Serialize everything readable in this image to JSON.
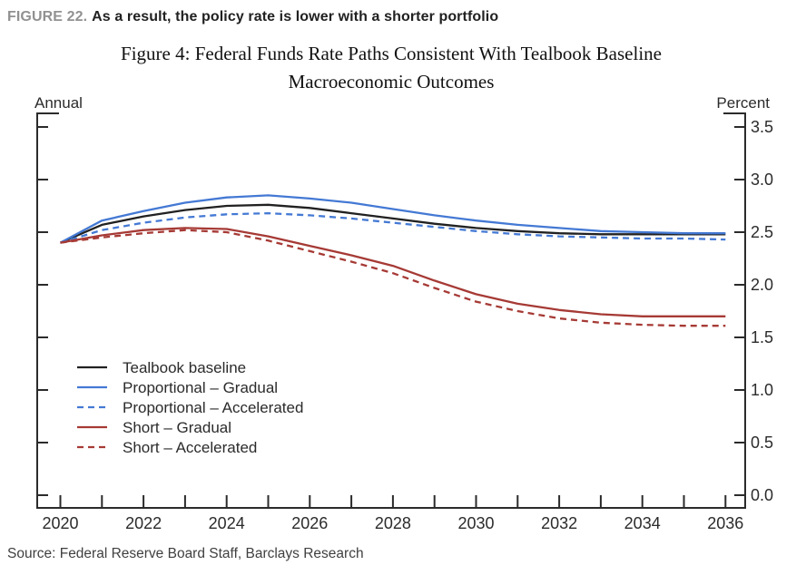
{
  "header": {
    "figure_label": "FIGURE 22.",
    "figure_title": "As a result, the policy rate is lower with a shorter portfolio"
  },
  "title_line1": "Figure 4: Federal Funds Rate Paths Consistent With Tealbook Baseline",
  "title_line2": "Macroeconomic Outcomes",
  "axis_unit_left": "Annual",
  "axis_unit_right": "Percent",
  "source": "Source: Federal Reserve Board Staff, Barclays Research",
  "colors": {
    "axis": "#2b2b2b",
    "tick_label": "#2b2b2b",
    "black_line": "#212121",
    "blue_line": "#4479d4",
    "red_line": "#a63a35",
    "header_label": "#919191",
    "header_text": "#212121",
    "source_text": "#404040"
  },
  "chart_data": {
    "type": "line",
    "title": "Figure 4: Federal Funds Rate Paths Consistent With Tealbook Baseline Macroeconomic Outcomes",
    "left_header": "Annual",
    "right_header": "Percent",
    "x": [
      2020,
      2021,
      2022,
      2023,
      2024,
      2025,
      2026,
      2027,
      2028,
      2029,
      2030,
      2031,
      2032,
      2033,
      2034,
      2035,
      2036
    ],
    "x_tick_labels": [
      2020,
      2022,
      2024,
      2026,
      2028,
      2030,
      2032,
      2034,
      2036
    ],
    "xlim": [
      2020,
      2036
    ],
    "ylim": [
      0.0,
      3.5
    ],
    "y_ticks": [
      0.0,
      0.5,
      1.0,
      1.5,
      2.0,
      2.5,
      3.0,
      3.5
    ],
    "y_tick_side": "right",
    "grid": false,
    "legend_position": "inside-lower-left",
    "series": [
      {
        "name": "Tealbook baseline",
        "color": "#212121",
        "dash": false,
        "values": [
          2.4,
          2.57,
          2.65,
          2.71,
          2.75,
          2.76,
          2.73,
          2.68,
          2.63,
          2.58,
          2.54,
          2.51,
          2.49,
          2.48,
          2.48,
          2.48,
          2.48
        ]
      },
      {
        "name": "Proportional – Gradual",
        "color": "#4479d4",
        "dash": false,
        "values": [
          2.4,
          2.61,
          2.7,
          2.78,
          2.83,
          2.85,
          2.82,
          2.78,
          2.72,
          2.66,
          2.61,
          2.57,
          2.54,
          2.51,
          2.5,
          2.49,
          2.49
        ]
      },
      {
        "name": "Proportional – Accelerated",
        "color": "#4479d4",
        "dash": true,
        "values": [
          2.4,
          2.52,
          2.59,
          2.64,
          2.67,
          2.68,
          2.66,
          2.63,
          2.59,
          2.55,
          2.51,
          2.48,
          2.46,
          2.45,
          2.44,
          2.44,
          2.43
        ]
      },
      {
        "name": "Short – Gradual",
        "color": "#a63a35",
        "dash": false,
        "values": [
          2.4,
          2.47,
          2.52,
          2.54,
          2.53,
          2.46,
          2.37,
          2.28,
          2.18,
          2.04,
          1.91,
          1.82,
          1.76,
          1.72,
          1.7,
          1.7,
          1.7
        ]
      },
      {
        "name": "Short – Accelerated",
        "color": "#a63a35",
        "dash": true,
        "values": [
          2.4,
          2.45,
          2.49,
          2.52,
          2.5,
          2.42,
          2.32,
          2.22,
          2.11,
          1.97,
          1.84,
          1.75,
          1.68,
          1.64,
          1.62,
          1.61,
          1.61
        ]
      }
    ]
  }
}
